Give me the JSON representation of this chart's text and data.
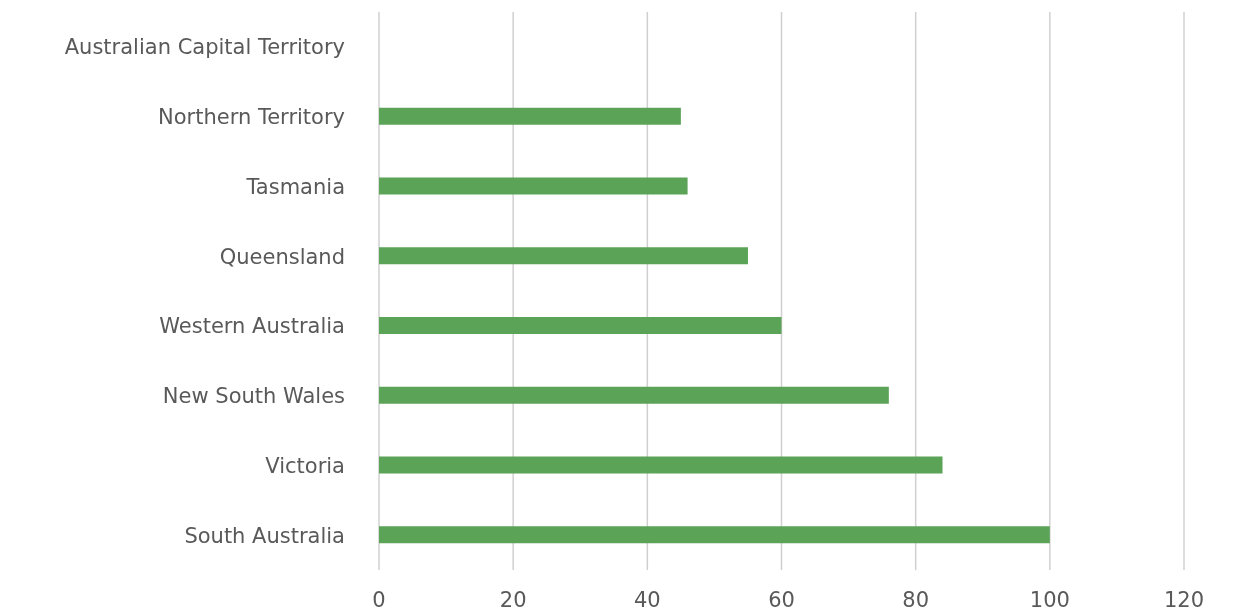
{
  "chart_data": {
    "type": "bar",
    "orientation": "horizontal",
    "categories": [
      "Australian Capital Territory",
      "Northern Territory",
      "Tasmania",
      "Queensland",
      "Western Australia",
      "New South Wales",
      "Victoria",
      "South Australia"
    ],
    "values": [
      null,
      45,
      46,
      55,
      60,
      76,
      84,
      100
    ],
    "color": "#5ba357",
    "xlim": [
      0,
      120
    ],
    "xticks": [
      0,
      20,
      40,
      60,
      80,
      100,
      120
    ],
    "grid": "x",
    "legend": false
  }
}
